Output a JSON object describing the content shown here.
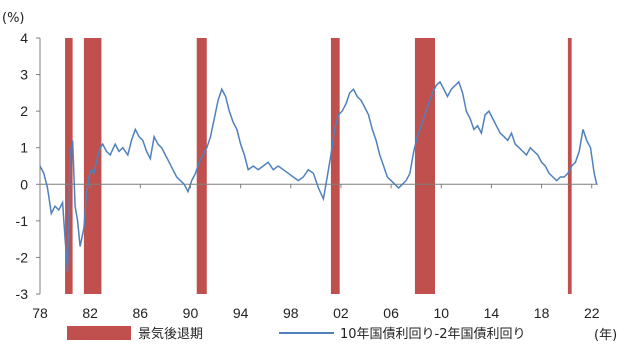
{
  "chart_data": {
    "type": "line",
    "title": "",
    "y_unit": "(%)",
    "x_unit": "(年)",
    "xlim": [
      1978,
      2022.5
    ],
    "ylim": [
      -3,
      4
    ],
    "x_ticks": [
      1978,
      1982,
      1986,
      1990,
      1994,
      1998,
      2002,
      2006,
      2010,
      2014,
      2018,
      2022
    ],
    "x_tick_labels": [
      "78",
      "82",
      "86",
      "90",
      "94",
      "98",
      "02",
      "06",
      "10",
      "14",
      "18",
      "22"
    ],
    "y_ticks": [
      4,
      3,
      2,
      1,
      0,
      -1,
      -2,
      -3
    ],
    "y_tick_labels": [
      "4",
      "3",
      "2",
      "1",
      "0",
      "-1",
      "-2",
      "-3"
    ],
    "zero_line": true,
    "legend_position": "bottom",
    "colors": {
      "recession": "#c0504d",
      "spread_line": "#4f81bd",
      "axis": "#7f7f7f"
    },
    "recessions": {
      "name": "景気後退期",
      "periods": [
        [
          1980.0,
          1980.6
        ],
        [
          1981.5,
          1982.9
        ],
        [
          1990.5,
          1991.3
        ],
        [
          2001.2,
          2001.9
        ],
        [
          2007.9,
          2009.5
        ],
        [
          2020.1,
          2020.4
        ]
      ]
    },
    "series": [
      {
        "name": "10年国債利回り-2年国債利回り",
        "x": [
          1978.0,
          1978.3,
          1978.6,
          1978.9,
          1979.2,
          1979.5,
          1979.8,
          1980.0,
          1980.2,
          1980.4,
          1980.6,
          1980.8,
          1981.0,
          1981.2,
          1981.5,
          1981.7,
          1981.9,
          1982.1,
          1982.3,
          1982.5,
          1982.8,
          1983.0,
          1983.3,
          1983.6,
          1984.0,
          1984.3,
          1984.6,
          1985.0,
          1985.3,
          1985.6,
          1985.9,
          1986.2,
          1986.5,
          1986.8,
          1987.1,
          1987.4,
          1987.7,
          1988.0,
          1988.3,
          1988.6,
          1988.9,
          1989.2,
          1989.5,
          1989.8,
          1990.1,
          1990.4,
          1990.7,
          1991.0,
          1991.3,
          1991.6,
          1991.9,
          1992.2,
          1992.5,
          1992.8,
          1993.1,
          1993.4,
          1993.7,
          1994.0,
          1994.3,
          1994.6,
          1995.0,
          1995.4,
          1995.8,
          1996.2,
          1996.6,
          1997.0,
          1997.4,
          1997.8,
          1998.2,
          1998.6,
          1999.0,
          1999.4,
          1999.8,
          2000.2,
          2000.6,
          2000.9,
          2001.2,
          2001.5,
          2001.8,
          2002.1,
          2002.4,
          2002.7,
          2003.0,
          2003.3,
          2003.6,
          2003.9,
          2004.2,
          2004.5,
          2004.8,
          2005.1,
          2005.4,
          2005.7,
          2006.0,
          2006.3,
          2006.6,
          2006.9,
          2007.2,
          2007.5,
          2007.8,
          2008.1,
          2008.4,
          2008.7,
          2009.0,
          2009.3,
          2009.6,
          2009.9,
          2010.2,
          2010.5,
          2010.8,
          2011.1,
          2011.4,
          2011.7,
          2012.0,
          2012.3,
          2012.6,
          2012.9,
          2013.2,
          2013.5,
          2013.8,
          2014.1,
          2014.4,
          2014.7,
          2015.0,
          2015.3,
          2015.6,
          2015.9,
          2016.2,
          2016.5,
          2016.8,
          2017.1,
          2017.4,
          2017.7,
          2018.0,
          2018.3,
          2018.6,
          2018.9,
          2019.2,
          2019.5,
          2019.8,
          2020.1,
          2020.4,
          2020.7,
          2021.0,
          2021.3,
          2021.6,
          2021.9,
          2022.2,
          2022.4
        ],
        "y": [
          0.5,
          0.3,
          -0.1,
          -0.8,
          -0.6,
          -0.7,
          -0.5,
          -1.5,
          -2.4,
          0.8,
          1.2,
          -0.6,
          -1.0,
          -1.7,
          -1.2,
          -0.3,
          0.2,
          0.4,
          0.3,
          0.6,
          1.0,
          1.1,
          0.9,
          0.8,
          1.1,
          0.9,
          1.0,
          0.8,
          1.2,
          1.5,
          1.3,
          1.2,
          0.9,
          0.7,
          1.3,
          1.1,
          1.0,
          0.8,
          0.6,
          0.4,
          0.2,
          0.1,
          0.0,
          -0.2,
          0.1,
          0.3,
          0.6,
          0.8,
          1.0,
          1.3,
          1.8,
          2.3,
          2.6,
          2.4,
          2.0,
          1.7,
          1.5,
          1.1,
          0.8,
          0.4,
          0.5,
          0.4,
          0.5,
          0.6,
          0.4,
          0.5,
          0.4,
          0.3,
          0.2,
          0.1,
          0.2,
          0.4,
          0.3,
          -0.1,
          -0.4,
          0.2,
          0.8,
          1.5,
          1.9,
          2.0,
          2.2,
          2.5,
          2.6,
          2.4,
          2.3,
          2.1,
          1.9,
          1.5,
          1.2,
          0.8,
          0.5,
          0.2,
          0.1,
          0.0,
          -0.1,
          0.0,
          0.1,
          0.3,
          0.9,
          1.3,
          1.6,
          1.9,
          2.2,
          2.5,
          2.7,
          2.8,
          2.6,
          2.4,
          2.6,
          2.7,
          2.8,
          2.5,
          2.0,
          1.8,
          1.5,
          1.6,
          1.4,
          1.9,
          2.0,
          1.8,
          1.6,
          1.4,
          1.3,
          1.2,
          1.4,
          1.1,
          1.0,
          0.9,
          0.8,
          1.0,
          0.9,
          0.8,
          0.6,
          0.5,
          0.3,
          0.2,
          0.1,
          0.2,
          0.2,
          0.3,
          0.5,
          0.6,
          0.9,
          1.5,
          1.2,
          1.0,
          0.3,
          0.0
        ]
      }
    ]
  }
}
